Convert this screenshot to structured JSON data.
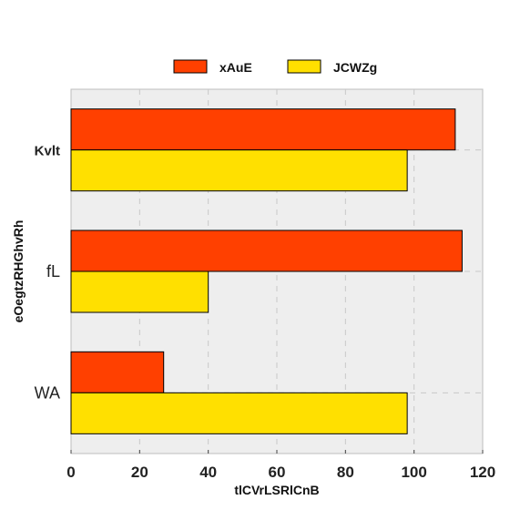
{
  "chart_data": {
    "type": "bar",
    "orientation": "horizontal",
    "categories": [
      "Kvlt",
      "fL",
      "WA"
    ],
    "series": [
      {
        "name": "xAuE",
        "values": [
          112,
          114,
          27
        ],
        "color": "#ff4000"
      },
      {
        "name": "JCWZg",
        "values": [
          98,
          40,
          98
        ],
        "color": "#ffe000"
      }
    ],
    "xlabel": "tlCVrLSRlCnB",
    "ylabel": "eOegtzRHGhvRh",
    "xlim": [
      0,
      120
    ],
    "xticks": [
      "0",
      "20",
      "40",
      "60",
      "80",
      "100",
      "120"
    ],
    "grid": true,
    "legend": "top-center",
    "background": "#eeeeee"
  }
}
